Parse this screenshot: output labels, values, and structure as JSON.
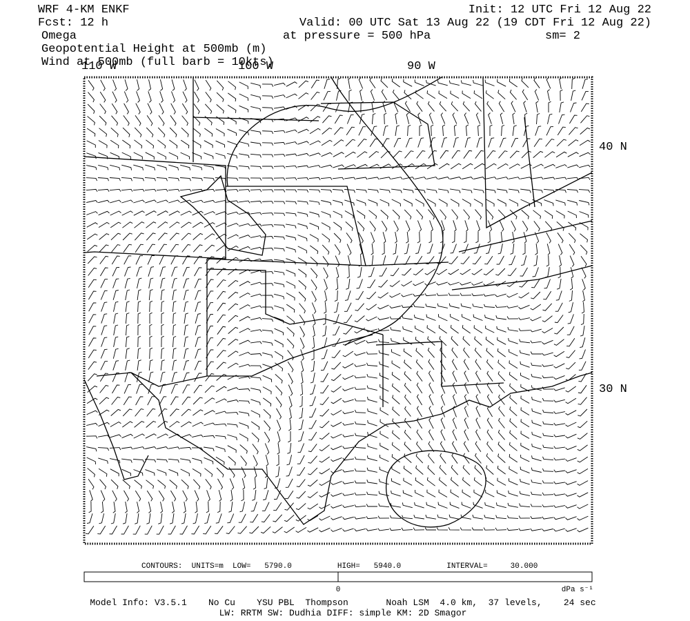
{
  "header": {
    "model": "WRF 4-KM ENKF",
    "forecast": "Fcst:   12 h",
    "init": "Init: 12 UTC Fri 12 Aug 22",
    "valid": "Valid: 00 UTC Sat 13 Aug 22 (19 CDT Fri 12 Aug 22)",
    "fields": [
      "Omega",
      "Geopotential Height at 500mb (m)",
      "Wind at 500mb (full barb = 10kts)"
    ],
    "pressure": "at pressure =  500 hPa",
    "smoothing": "sm= 2"
  },
  "map": {
    "lon_labels": [
      "110 W",
      "100 W",
      "90 W"
    ],
    "lat_labels": [
      "40 N",
      "30 N"
    ]
  },
  "contours": "CONTOURS:  UNITS=m  LOW=   5790.0          HIGH=   5940.0          INTERVAL=     30.000",
  "colorbar": {
    "zero": "0",
    "units": "dPa s⁻¹"
  },
  "model_info": [
    "Model Info: V3.5.1    No Cu    YSU PBL  Thompson       Noah LSM  4.0 km,  37 levels,    24 sec",
    "LW: RRTM SW: Dudhia  DIFF: simple KM: 2D Smagor"
  ]
}
